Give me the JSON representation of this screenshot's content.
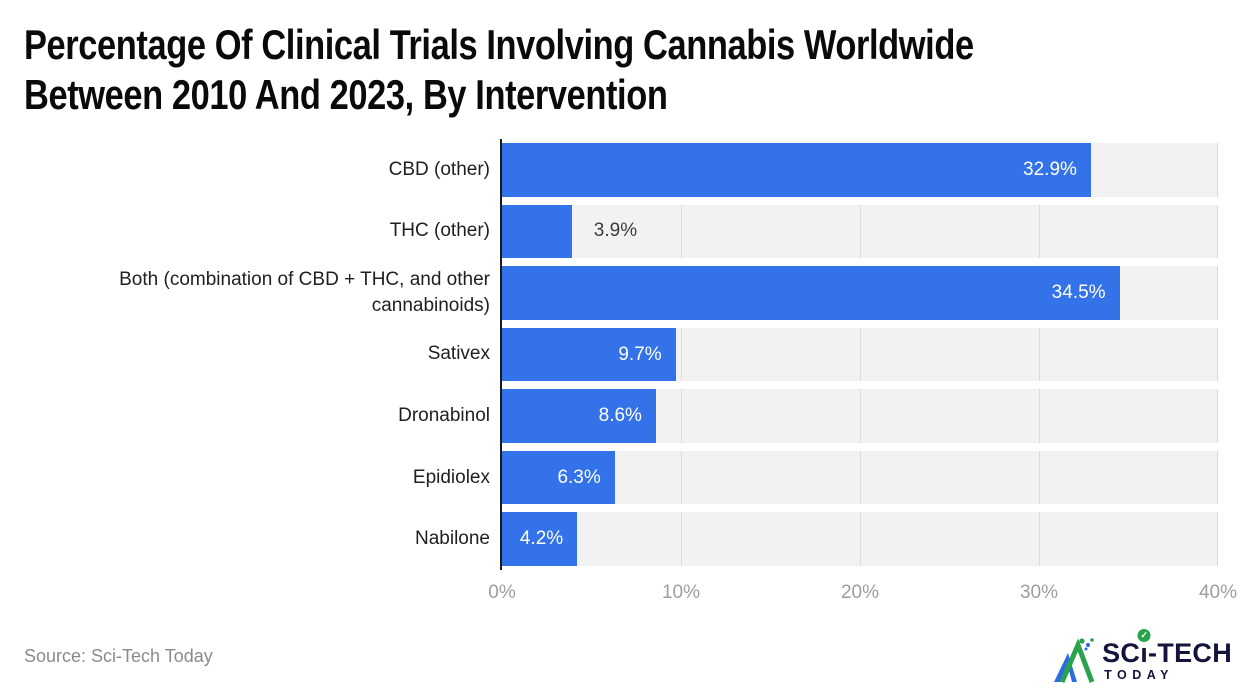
{
  "title": {
    "line1": "Percentage Of Clinical Trials Involving Cannabis Worldwide",
    "line2": "Between 2010 And 2023, By Intervention"
  },
  "chart_data": {
    "type": "bar",
    "orientation": "horizontal",
    "title": "Percentage Of Clinical Trials Involving Cannabis Worldwide Between 2010 And 2023, By Intervention",
    "xlabel": "",
    "ylabel": "",
    "categories": [
      "CBD (other)",
      "THC (other)",
      "Both (combination of CBD + THC, and other cannabinoids)",
      "Sativex",
      "Dronabinol",
      "Epidiolex",
      "Nabilone"
    ],
    "values": [
      32.9,
      3.9,
      34.5,
      9.7,
      8.6,
      6.3,
      4.2
    ],
    "value_labels": [
      "32.9%",
      "3.9%",
      "34.5%",
      "9.7%",
      "8.6%",
      "6.3%",
      "4.2%"
    ],
    "label_inside": [
      true,
      false,
      true,
      true,
      true,
      true,
      true
    ],
    "xlim": [
      0,
      40
    ],
    "tick_values": [
      0,
      10,
      20,
      30,
      40
    ],
    "tick_labels": [
      "0%",
      "10%",
      "20%",
      "30%",
      "40%"
    ],
    "grid": true,
    "legend": "none",
    "bar_color": "#3372e8",
    "band_color": "#f2f2f2",
    "gridline_color": "#dcdcdc",
    "axis_line_color": "#1b1b1b",
    "value_label_color_inside": "#ffffff",
    "value_label_color_outside": "#3d3d3d",
    "tick_label_color": "#9e9e9e"
  },
  "footer": {
    "source": "Source: Sci-Tech Today"
  },
  "logo": {
    "brand_pre": "SC",
    "brand_i_stem": "ı",
    "brand_post": "-TECH",
    "brand_sub": "TODAY",
    "check_glyph": "✓",
    "navy": "#14143c",
    "green": "#28a34c",
    "blue": "#2b6ce0"
  }
}
